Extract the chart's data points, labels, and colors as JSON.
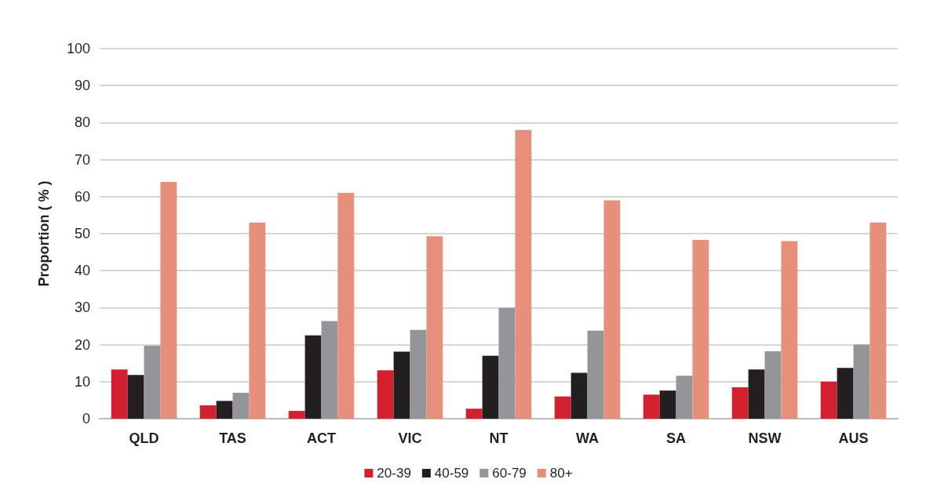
{
  "chart_data": {
    "type": "bar",
    "ylabel": "Proportion ( % )",
    "categories": [
      "QLD",
      "TAS",
      "ACT",
      "VIC",
      "NT",
      "WA",
      "SA",
      "NSW",
      "AUS"
    ],
    "series": [
      {
        "name": "20-39",
        "color": "#d2202f",
        "values": [
          13.3,
          3.6,
          2.1,
          13.1,
          2.7,
          6.0,
          6.5,
          8.5,
          10.0
        ]
      },
      {
        "name": "40-59",
        "color": "#231f20",
        "values": [
          11.8,
          4.8,
          22.5,
          18.1,
          17.0,
          12.4,
          7.6,
          13.3,
          13.7
        ]
      },
      {
        "name": "60-79",
        "color": "#939598",
        "values": [
          19.7,
          7.0,
          26.4,
          24.0,
          30.0,
          23.8,
          11.6,
          18.2,
          20.0
        ]
      },
      {
        "name": "80+",
        "color": "#e6907c",
        "values": [
          64,
          53,
          61,
          49.3,
          78,
          59,
          48.3,
          48,
          53
        ]
      }
    ],
    "ylim": [
      0,
      100
    ],
    "yticks": [
      0,
      10,
      20,
      30,
      40,
      50,
      60,
      70,
      80,
      90,
      100
    ],
    "grid": "y",
    "legend": "bottom"
  }
}
